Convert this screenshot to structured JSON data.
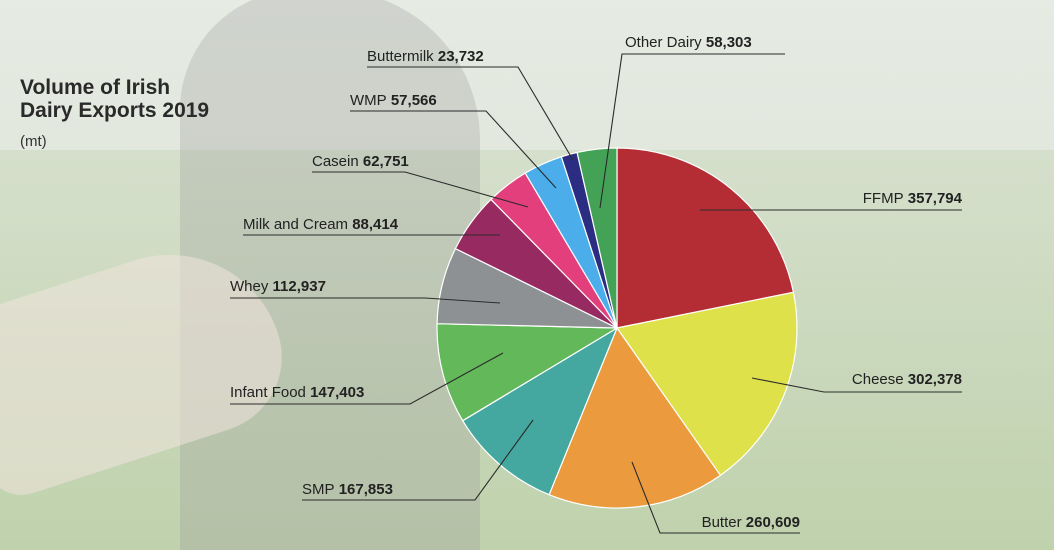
{
  "title_line1": "Volume of Irish",
  "title_line2": "Dairy Exports 2019",
  "subtitle": "(mt)",
  "chart_data": {
    "type": "pie",
    "title": "Volume of Irish Dairy Exports 2019",
    "unit": "(mt)",
    "legend": "none",
    "slices": [
      {
        "name": "FFMP",
        "value": 357794,
        "display": "357,794",
        "color": "#b52d34"
      },
      {
        "name": "Cheese",
        "value": 302378,
        "display": "302,378",
        "color": "#dfe14b"
      },
      {
        "name": "Butter",
        "value": 260609,
        "display": "260,609",
        "color": "#eb9b3d"
      },
      {
        "name": "SMP",
        "value": 167853,
        "display": "167,853",
        "color": "#44a8a0"
      },
      {
        "name": "Infant Food",
        "value": 147403,
        "display": "147,403",
        "color": "#63b85a"
      },
      {
        "name": "Whey",
        "value": 112937,
        "display": "112,937",
        "color": "#8e9193"
      },
      {
        "name": "Milk and Cream",
        "value": 88414,
        "display": "88,414",
        "color": "#982a62"
      },
      {
        "name": "Casein",
        "value": 62751,
        "display": "62,751",
        "color": "#e33f7c"
      },
      {
        "name": "WMP",
        "value": 57566,
        "display": "57,566",
        "color": "#4badea"
      },
      {
        "name": "Buttermilk",
        "value": 23732,
        "display": "23,732",
        "color": "#2a2d82"
      },
      {
        "name": "Other Dairy",
        "value": 58303,
        "display": "58,303",
        "color": "#44a257"
      }
    ]
  }
}
